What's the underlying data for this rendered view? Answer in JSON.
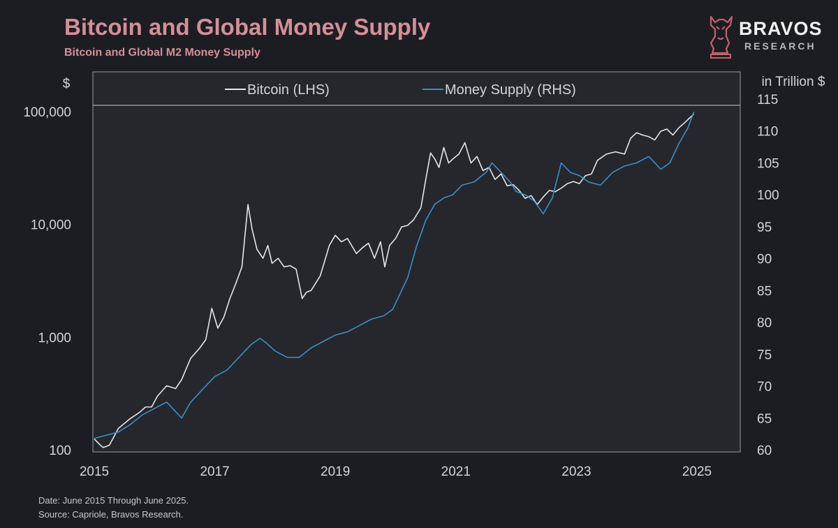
{
  "header": {
    "title": "Bitcoin and Global Money Supply",
    "subtitle": "Bitcoin and Global M2 Money Supply"
  },
  "logo": {
    "name": "BRAVOS",
    "sub": "RESEARCH",
    "icon": "bull-chess-knight-icon",
    "color": "#c8606b"
  },
  "footer": {
    "date_note": "Date: June 2015 Through June 2025.",
    "source_note": "Source: Capriole, Bravos Research."
  },
  "chart_data": {
    "type": "line",
    "title": "",
    "left_axis": {
      "unit_label": "$",
      "scale": "log",
      "range": [
        100,
        100000
      ],
      "ticks": [
        100,
        1000,
        10000,
        100000
      ],
      "tick_labels": [
        "100",
        "1,000",
        "10,000",
        "100,000"
      ]
    },
    "right_axis": {
      "unit_label": "in Trillion $",
      "scale": "linear",
      "range": [
        60,
        115
      ],
      "ticks": [
        60,
        65,
        70,
        75,
        80,
        85,
        90,
        95,
        100,
        105,
        110,
        115
      ],
      "tick_labels": [
        "60",
        "65",
        "70",
        "75",
        "80",
        "85",
        "90",
        "95",
        "100",
        "105",
        "110",
        "115"
      ]
    },
    "x_axis": {
      "range": [
        2015.0,
        2025.0
      ],
      "ticks": [
        2015,
        2017,
        2019,
        2021,
        2023,
        2025
      ],
      "tick_labels": [
        "2015",
        "2017",
        "2019",
        "2021",
        "2023",
        "2025"
      ]
    },
    "legend_position": "top",
    "grid": false,
    "series": [
      {
        "name": "Bitcoin (LHS)",
        "axis": "left",
        "color": "#e6e6e6",
        "x": [
          2015.0,
          2015.1,
          2015.15,
          2015.25,
          2015.4,
          2015.6,
          2015.75,
          2015.85,
          2015.95,
          2016.05,
          2016.2,
          2016.35,
          2016.45,
          2016.6,
          2016.75,
          2016.85,
          2016.95,
          2017.05,
          2017.15,
          2017.25,
          2017.35,
          2017.45,
          2017.55,
          2017.62,
          2017.7,
          2017.8,
          2017.88,
          2017.95,
          2018.05,
          2018.15,
          2018.25,
          2018.35,
          2018.45,
          2018.52,
          2018.6,
          2018.75,
          2018.9,
          2019.0,
          2019.1,
          2019.2,
          2019.35,
          2019.45,
          2019.55,
          2019.65,
          2019.75,
          2019.82,
          2019.9,
          2020.0,
          2020.1,
          2020.2,
          2020.3,
          2020.42,
          2020.5,
          2020.58,
          2020.65,
          2020.72,
          2020.8,
          2020.88,
          2020.95,
          2021.05,
          2021.15,
          2021.25,
          2021.35,
          2021.45,
          2021.55,
          2021.65,
          2021.75,
          2021.85,
          2021.95,
          2022.05,
          2022.15,
          2022.25,
          2022.35,
          2022.45,
          2022.55,
          2022.65,
          2022.75,
          2022.85,
          2022.95,
          2023.05,
          2023.15,
          2023.25,
          2023.35,
          2023.5,
          2023.65,
          2023.8,
          2023.9,
          2024.0,
          2024.1,
          2024.2,
          2024.3,
          2024.4,
          2024.5,
          2024.6,
          2024.7,
          2024.8,
          2024.88,
          2024.95
        ],
        "values": [
          125,
          110,
          105,
          110,
          155,
          190,
          215,
          240,
          240,
          300,
          370,
          350,
          420,
          650,
          800,
          950,
          1800,
          1200,
          1500,
          2200,
          3000,
          4200,
          15000,
          9000,
          6000,
          5000,
          6500,
          4500,
          5000,
          4200,
          4300,
          4000,
          2200,
          2500,
          2600,
          3500,
          6500,
          8000,
          7000,
          7500,
          5500,
          6200,
          6800,
          5000,
          7000,
          4200,
          6500,
          7500,
          9500,
          9800,
          11000,
          14000,
          25000,
          43000,
          38000,
          32000,
          48000,
          35000,
          38000,
          42000,
          53000,
          35000,
          40000,
          30000,
          32000,
          25000,
          28000,
          22000,
          22500,
          20000,
          17000,
          18000,
          15000,
          17500,
          20000,
          19500,
          21000,
          23000,
          24000,
          23000,
          27000,
          28000,
          37000,
          42000,
          44000,
          42000,
          58000,
          65000,
          62000,
          60000,
          56000,
          67000,
          70000,
          62000,
          72000,
          80000,
          88000,
          95000
        ]
      },
      {
        "name": "Money Supply (RHS)",
        "axis": "right",
        "color": "#3a8fc8",
        "x": [
          2015.0,
          2015.2,
          2015.4,
          2015.6,
          2015.8,
          2016.0,
          2016.2,
          2016.35,
          2016.45,
          2016.6,
          2016.8,
          2017.0,
          2017.2,
          2017.4,
          2017.6,
          2017.75,
          2017.85,
          2018.0,
          2018.2,
          2018.4,
          2018.6,
          2018.8,
          2019.0,
          2019.2,
          2019.4,
          2019.6,
          2019.8,
          2019.95,
          2020.05,
          2020.2,
          2020.35,
          2020.5,
          2020.65,
          2020.8,
          2020.95,
          2021.1,
          2021.3,
          2021.5,
          2021.6,
          2021.75,
          2021.9,
          2022.0,
          2022.15,
          2022.3,
          2022.45,
          2022.6,
          2022.75,
          2022.9,
          2023.05,
          2023.2,
          2023.4,
          2023.6,
          2023.8,
          2024.0,
          2024.2,
          2024.4,
          2024.55,
          2024.7,
          2024.85,
          2024.95
        ],
        "values": [
          61.8,
          62.3,
          62.8,
          64.0,
          65.5,
          66.5,
          67.5,
          66.0,
          65.0,
          67.5,
          69.5,
          71.5,
          72.5,
          74.5,
          76.5,
          77.5,
          76.8,
          75.5,
          74.5,
          74.5,
          76.0,
          77.0,
          78.0,
          78.5,
          79.5,
          80.5,
          81.0,
          82.0,
          84.0,
          87.0,
          92.0,
          96.0,
          98.5,
          99.5,
          100.0,
          101.5,
          102.0,
          103.5,
          105.0,
          103.5,
          102.0,
          100.5,
          100.0,
          99.0,
          97.0,
          99.5,
          105.0,
          103.5,
          103.0,
          102.0,
          101.5,
          103.5,
          104.5,
          105.0,
          106.0,
          104.0,
          105.0,
          108.0,
          110.5,
          113.0
        ]
      }
    ]
  }
}
